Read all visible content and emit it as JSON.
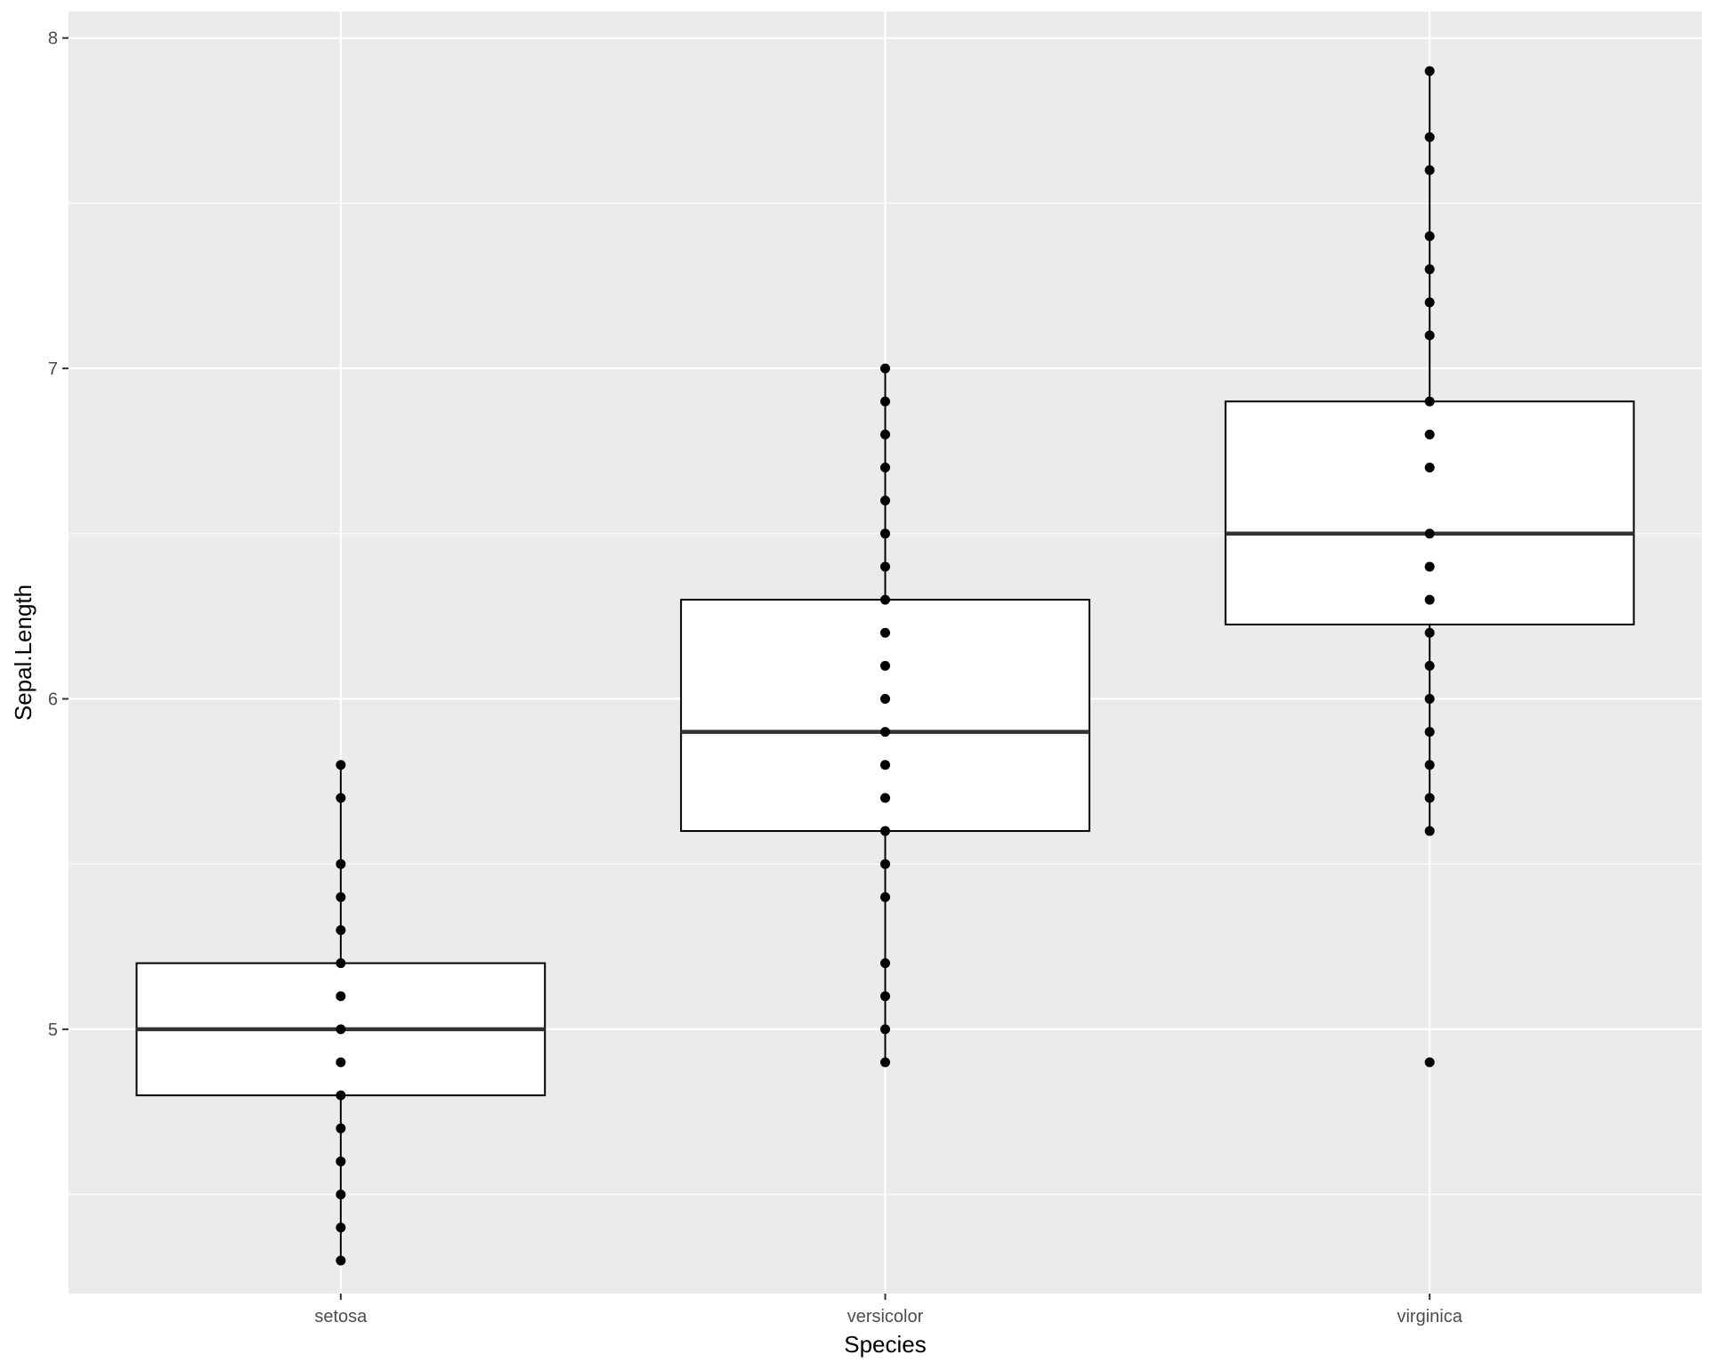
{
  "colors": {
    "panel_background": "#EBEBEB",
    "grid_major": "#FFFFFF",
    "box_fill": "#FFFFFF",
    "stroke": "#000000",
    "median": "#333333",
    "tick_text": "#4D4D4D"
  },
  "chart_data": {
    "type": "boxplot",
    "title": "",
    "xlabel": "Species",
    "ylabel": "Sepal.Length",
    "ylim": [
      4.2,
      8.08
    ],
    "y_ticks": [
      5,
      6,
      7,
      8
    ],
    "y_tick_labels": [
      "5",
      "6",
      "7",
      "8"
    ],
    "grid": true,
    "legend": "none",
    "overlay": "points",
    "categories": [
      "setosa",
      "versicolor",
      "virginica"
    ],
    "boxes": [
      {
        "category": "setosa",
        "whisker_low": 4.3,
        "q1": 4.8,
        "median": 5.0,
        "q3": 5.2,
        "whisker_high": 5.8
      },
      {
        "category": "versicolor",
        "whisker_low": 4.9,
        "q1": 5.6,
        "median": 5.9,
        "q3": 6.3,
        "whisker_high": 7.0
      },
      {
        "category": "virginica",
        "whisker_low": 5.6,
        "q1": 6.225,
        "median": 6.5,
        "q3": 6.9,
        "whisker_high": 7.9
      }
    ],
    "points": [
      {
        "category": "setosa",
        "values": [
          4.3,
          4.4,
          4.5,
          4.6,
          4.7,
          4.8,
          4.9,
          5.0,
          5.1,
          5.2,
          5.3,
          5.4,
          5.5,
          5.7,
          5.8
        ]
      },
      {
        "category": "versicolor",
        "values": [
          4.9,
          5.0,
          5.1,
          5.2,
          5.4,
          5.5,
          5.6,
          5.7,
          5.8,
          5.9,
          6.0,
          6.1,
          6.2,
          6.3,
          6.4,
          6.5,
          6.6,
          6.7,
          6.8,
          6.9,
          7.0
        ]
      },
      {
        "category": "virginica",
        "values": [
          4.9,
          5.6,
          5.7,
          5.8,
          5.9,
          6.0,
          6.1,
          6.2,
          6.3,
          6.4,
          6.5,
          6.7,
          6.8,
          6.9,
          7.1,
          7.2,
          7.3,
          7.4,
          7.6,
          7.7,
          7.9
        ]
      }
    ]
  }
}
